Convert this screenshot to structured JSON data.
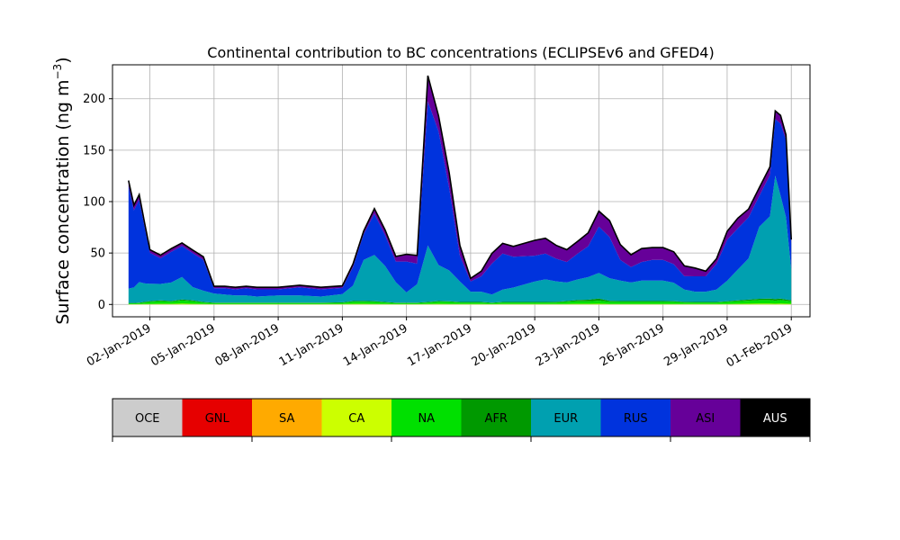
{
  "chart_data": {
    "type": "area",
    "stacked": true,
    "title": "Continental contribution to BC concentrations (ECLIPSEv6 and GFED4)",
    "ylabel": "Surface concentration (ng m",
    "ylabel_sup": "−3",
    "ylabel_close": ")",
    "ylim": [
      -12,
      233
    ],
    "yticks": [
      0,
      50,
      100,
      150,
      200
    ],
    "xlim": [
      "2018-12-31T06:00",
      "2019-02-01T21:00"
    ],
    "xticks": [
      "02-Jan-2019",
      "05-Jan-2019",
      "08-Jan-2019",
      "11-Jan-2019",
      "14-Jan-2019",
      "17-Jan-2019",
      "20-Jan-2019",
      "23-Jan-2019",
      "26-Jan-2019",
      "29-Jan-2019",
      "01-Feb-2019"
    ],
    "xtick_dates": [
      "2019-01-02",
      "2019-01-05",
      "2019-01-08",
      "2019-01-11",
      "2019-01-14",
      "2019-01-17",
      "2019-01-20",
      "2019-01-23",
      "2019-01-26",
      "2019-01-29",
      "2019-02-01"
    ],
    "grid": true,
    "x": [
      "2019-01-01T00:00",
      "2019-01-01T06:00",
      "2019-01-01T12:00",
      "2019-01-01T18:00",
      "2019-01-02T00:00",
      "2019-01-02T12:00",
      "2019-01-03T00:00",
      "2019-01-03T12:00",
      "2019-01-04T00:00",
      "2019-01-04T12:00",
      "2019-01-05T00:00",
      "2019-01-05T12:00",
      "2019-01-06T00:00",
      "2019-01-06T12:00",
      "2019-01-07T00:00",
      "2019-01-08T00:00",
      "2019-01-09T00:00",
      "2019-01-10T00:00",
      "2019-01-11T00:00",
      "2019-01-11T12:00",
      "2019-01-12T00:00",
      "2019-01-12T12:00",
      "2019-01-13T00:00",
      "2019-01-13T12:00",
      "2019-01-14T00:00",
      "2019-01-14T12:00",
      "2019-01-15T00:00",
      "2019-01-15T12:00",
      "2019-01-16T00:00",
      "2019-01-16T12:00",
      "2019-01-17T00:00",
      "2019-01-17T12:00",
      "2019-01-18T00:00",
      "2019-01-18T12:00",
      "2019-01-19T00:00",
      "2019-01-20T00:00",
      "2019-01-20T12:00",
      "2019-01-21T00:00",
      "2019-01-21T12:00",
      "2019-01-22T00:00",
      "2019-01-22T12:00",
      "2019-01-23T00:00",
      "2019-01-23T12:00",
      "2019-01-24T00:00",
      "2019-01-24T12:00",
      "2019-01-25T00:00",
      "2019-01-25T12:00",
      "2019-01-26T00:00",
      "2019-01-26T12:00",
      "2019-01-27T00:00",
      "2019-01-27T12:00",
      "2019-01-28T00:00",
      "2019-01-28T12:00",
      "2019-01-29T00:00",
      "2019-01-29T12:00",
      "2019-01-30T00:00",
      "2019-01-30T12:00",
      "2019-01-31T00:00",
      "2019-01-31T06:00",
      "2019-01-31T12:00",
      "2019-01-31T18:00",
      "2019-02-01T00:00"
    ],
    "series": [
      {
        "name": "OCE",
        "color": "#cccccc",
        "values": [
          0,
          0,
          0,
          0,
          0,
          0,
          0,
          0,
          0,
          0,
          0,
          0,
          0,
          0,
          0,
          0,
          0,
          0,
          0,
          0,
          0,
          0,
          0,
          0,
          0,
          0,
          0,
          0,
          0,
          0,
          0,
          0,
          0,
          0,
          0,
          0,
          0,
          0,
          0,
          0,
          0,
          0,
          0,
          0,
          0,
          0,
          0,
          0,
          0,
          0,
          0,
          0,
          0,
          0,
          0,
          0,
          0,
          0,
          0,
          0,
          0,
          0
        ]
      },
      {
        "name": "GNL",
        "color": "#e60000",
        "values": [
          0,
          0,
          0,
          0,
          0,
          0,
          0,
          0,
          0,
          0,
          0,
          0,
          0,
          0,
          0,
          0,
          0,
          0,
          0,
          0,
          0,
          0,
          0,
          0,
          0,
          0,
          0,
          0,
          0,
          0,
          0,
          0,
          0,
          0,
          0,
          0,
          0,
          0,
          0,
          0,
          0,
          0,
          0,
          0,
          0,
          0,
          0,
          0,
          0,
          0,
          0,
          0,
          0,
          0,
          0,
          0,
          0,
          0,
          0,
          0,
          0,
          0
        ]
      },
      {
        "name": "SA",
        "color": "#ffaa00",
        "values": [
          0,
          0,
          0,
          0,
          0,
          0,
          0,
          0,
          0,
          0,
          0,
          0,
          0,
          0,
          0,
          0,
          0,
          0,
          0,
          0,
          0,
          0,
          0,
          0,
          0,
          0,
          0,
          0,
          0,
          0,
          0,
          0,
          0,
          0,
          0,
          0,
          0,
          0,
          0,
          0,
          0,
          0,
          0,
          0,
          0,
          0,
          0,
          0,
          0,
          0,
          0,
          0,
          0,
          0,
          0,
          0,
          0,
          0,
          0,
          0,
          0,
          0
        ]
      },
      {
        "name": "CA",
        "color": "#ccff00",
        "values": [
          0.3,
          0.3,
          0.3,
          0.4,
          0.5,
          0.6,
          0.6,
          0.8,
          0.6,
          0.4,
          0.3,
          0.3,
          0.3,
          0.3,
          0.3,
          0.3,
          0.3,
          0.3,
          0.4,
          0.6,
          0.6,
          0.5,
          0.4,
          0.3,
          0.3,
          0.3,
          0.4,
          0.6,
          0.5,
          0.4,
          0.4,
          0.4,
          0.3,
          0.4,
          0.4,
          0.4,
          0.4,
          0.4,
          0.5,
          0.6,
          0.6,
          0.7,
          0.5,
          0.5,
          0.5,
          0.5,
          0.5,
          0.5,
          0.5,
          0.4,
          0.4,
          0.4,
          0.4,
          0.5,
          0.6,
          0.7,
          0.8,
          0.8,
          0.7,
          0.8,
          0.7,
          0.6
        ]
      },
      {
        "name": "NA",
        "color": "#00e000",
        "values": [
          0.8,
          0.8,
          1,
          1.5,
          2,
          2.5,
          2,
          3,
          2.5,
          1.5,
          1,
          1,
          1,
          1,
          1,
          1,
          1,
          1,
          1.2,
          2,
          2,
          2,
          1.5,
          1,
          1,
          1,
          1.5,
          2,
          2,
          1.5,
          1.5,
          1.5,
          1,
          1.5,
          1.5,
          1.5,
          1.5,
          1.5,
          2,
          2.5,
          2.5,
          3,
          2,
          2,
          2,
          2,
          2,
          2,
          2,
          1.5,
          1.5,
          1.5,
          1.5,
          2,
          2.5,
          3,
          3.5,
          3.5,
          3,
          3.5,
          3,
          2.5
        ]
      },
      {
        "name": "AFR",
        "color": "#009900",
        "values": [
          0.4,
          0.4,
          0.5,
          0.6,
          0.7,
          0.8,
          0.7,
          1,
          0.8,
          0.5,
          0.4,
          0.4,
          0.4,
          0.4,
          0.4,
          0.4,
          0.4,
          0.4,
          0.5,
          0.7,
          0.8,
          0.7,
          0.5,
          0.4,
          0.4,
          0.4,
          0.5,
          0.7,
          0.6,
          0.5,
          0.5,
          0.5,
          0.4,
          0.5,
          0.5,
          0.5,
          0.5,
          0.6,
          0.8,
          1.2,
          1.5,
          2,
          1,
          0.8,
          0.8,
          0.8,
          0.8,
          0.8,
          0.7,
          0.6,
          0.5,
          0.5,
          0.5,
          0.6,
          0.8,
          1,
          1.2,
          1.5,
          1.5,
          1.5,
          1.2,
          1
        ]
      },
      {
        "name": "EUR",
        "color": "#00a0b0",
        "values": [
          14,
          15,
          20,
          18,
          17,
          16,
          18,
          22,
          13,
          11,
          9,
          8,
          7,
          7,
          6,
          7,
          7,
          6,
          8,
          15,
          40,
          45,
          35,
          20,
          10,
          18,
          55,
          35,
          30,
          20,
          10,
          10,
          8,
          12,
          14,
          20,
          22,
          20,
          18,
          20,
          22,
          25,
          22,
          20,
          18,
          20,
          20,
          20,
          18,
          12,
          10,
          10,
          12,
          20,
          30,
          40,
          70,
          80,
          120,
          100,
          80,
          30
        ]
      },
      {
        "name": "RUS",
        "color": "#0033dd",
        "values": [
          100,
          75,
          80,
          55,
          30,
          25,
          30,
          30,
          33,
          30,
          5,
          6,
          6,
          7,
          7,
          6,
          8,
          7,
          6,
          18,
          25,
          40,
          30,
          20,
          30,
          20,
          140,
          130,
          80,
          25,
          10,
          15,
          30,
          35,
          30,
          25,
          25,
          22,
          20,
          25,
          30,
          45,
          40,
          20,
          15,
          18,
          20,
          20,
          18,
          13,
          15,
          15,
          25,
          40,
          40,
          40,
          30,
          40,
          55,
          70,
          75,
          25
        ]
      },
      {
        "name": "ASI",
        "color": "#660099",
        "values": [
          5,
          5,
          5,
          4,
          3,
          3,
          3,
          3,
          3,
          3,
          2,
          2,
          2,
          2,
          2,
          2,
          2,
          2,
          2,
          3,
          3,
          5,
          5,
          5,
          7,
          8,
          25,
          15,
          15,
          10,
          3,
          5,
          10,
          10,
          10,
          15,
          15,
          13,
          12,
          12,
          13,
          15,
          16,
          15,
          12,
          13,
          12,
          12,
          12,
          10,
          8,
          5,
          5,
          8,
          10,
          8,
          8,
          8,
          8,
          8,
          5,
          4
        ]
      },
      {
        "name": "AUS",
        "color": "#000000",
        "values": [
          0,
          0,
          0,
          0,
          0,
          0,
          0,
          0,
          0,
          0,
          0,
          0,
          0,
          0,
          0,
          0,
          0,
          0,
          0,
          0,
          0,
          0,
          0,
          0,
          0,
          0,
          0,
          0,
          0,
          0,
          0,
          0,
          0,
          0,
          0,
          0,
          0,
          0,
          0,
          0,
          0,
          0,
          0,
          0,
          0,
          0,
          0,
          0,
          0,
          0,
          0,
          0,
          0,
          0,
          0,
          0,
          0,
          0,
          0,
          0,
          0,
          0
        ]
      }
    ]
  }
}
